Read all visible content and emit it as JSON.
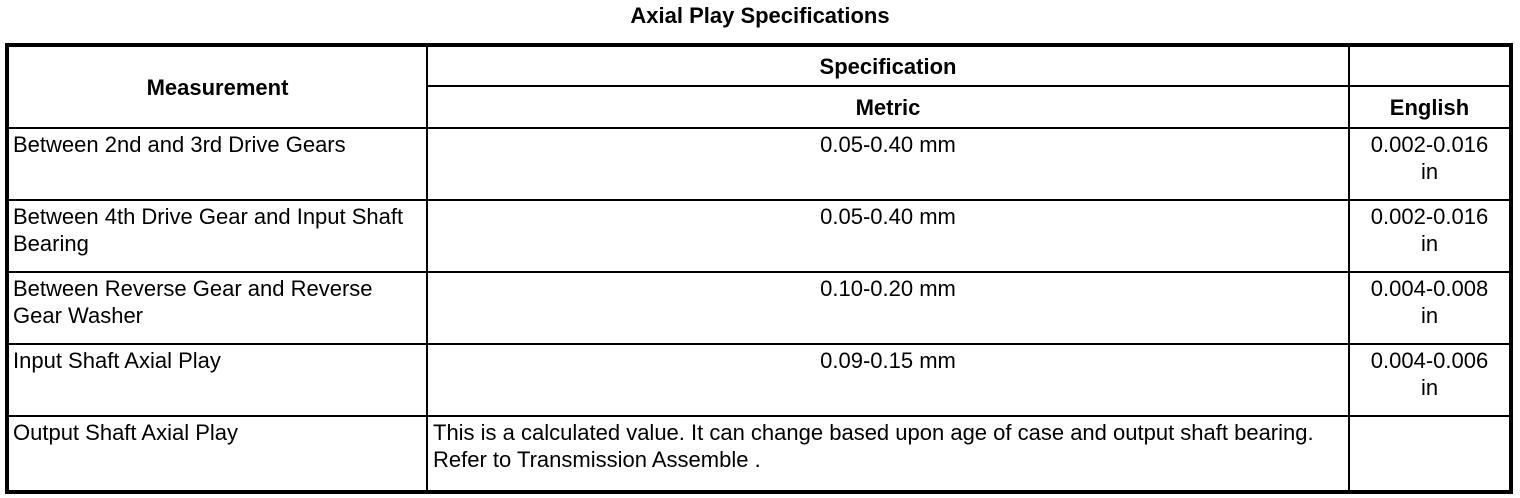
{
  "title": "Axial Play Specifications",
  "table": {
    "headers": {
      "measurement": "Measurement",
      "specification": "Specification",
      "metric": "Metric",
      "english": "English"
    },
    "rows": [
      {
        "measurement": "Between 2nd and 3rd Drive Gears",
        "metric": "0.05-0.40 mm",
        "english": "0.002-0.016 in"
      },
      {
        "measurement": "Between 4th Drive Gear and Input Shaft Bearing",
        "metric": "0.05-0.40 mm",
        "english": "0.002-0.016 in"
      },
      {
        "measurement": "Between Reverse Gear and Reverse Gear Washer",
        "metric": "0.10-0.20 mm",
        "english": "0.004-0.008 in"
      },
      {
        "measurement": "Input Shaft Axial Play",
        "metric": "0.09-0.15 mm",
        "english": "0.004-0.006 in"
      },
      {
        "measurement": "Output Shaft Axial Play",
        "metric": "This is a calculated value. It can change based upon age of case and output shaft bearing. Refer to Transmission Assemble .",
        "english": ""
      }
    ]
  },
  "colors": {
    "border": "#000000",
    "background": "#ffffff",
    "text": "#000000"
  }
}
